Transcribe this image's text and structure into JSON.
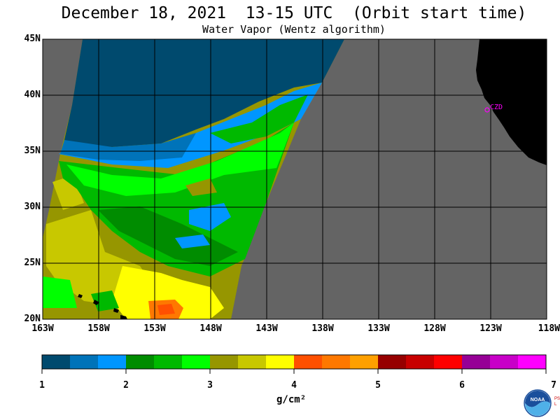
{
  "header": {
    "title": "December 18, 2021  13-15 UTC  (Orbit start time)",
    "subtitle": "Water Vapor (Wentz algorithm)"
  },
  "map": {
    "latitude_labels": [
      "45N",
      "40N",
      "35N",
      "30N",
      "25N",
      "20N"
    ],
    "longitude_labels": [
      "163W",
      "158W",
      "153W",
      "148W",
      "143W",
      "138W",
      "133W",
      "128W",
      "123W",
      "118W"
    ],
    "station_label": "CZD",
    "colors": {
      "land": "#000000",
      "no_data": "#646464",
      "grid": "#000000",
      "station": "#ff00ff"
    }
  },
  "colorbar": {
    "tick_labels": [
      "1",
      "2",
      "3",
      "4",
      "5",
      "6",
      "7"
    ],
    "units": "g/cm²",
    "colors": [
      "#004a6e",
      "#0073b9",
      "#0096ff",
      "#008c00",
      "#00b900",
      "#00ff00",
      "#969600",
      "#c8c800",
      "#ffff00",
      "#ff5000",
      "#ff7800",
      "#ffa000",
      "#960000",
      "#c80000",
      "#ff0000",
      "#960096",
      "#c800c8",
      "#ff00ff"
    ]
  },
  "logo": {
    "name": "noaa-logo",
    "text": "NOAA",
    "side_text": "PSL"
  }
}
